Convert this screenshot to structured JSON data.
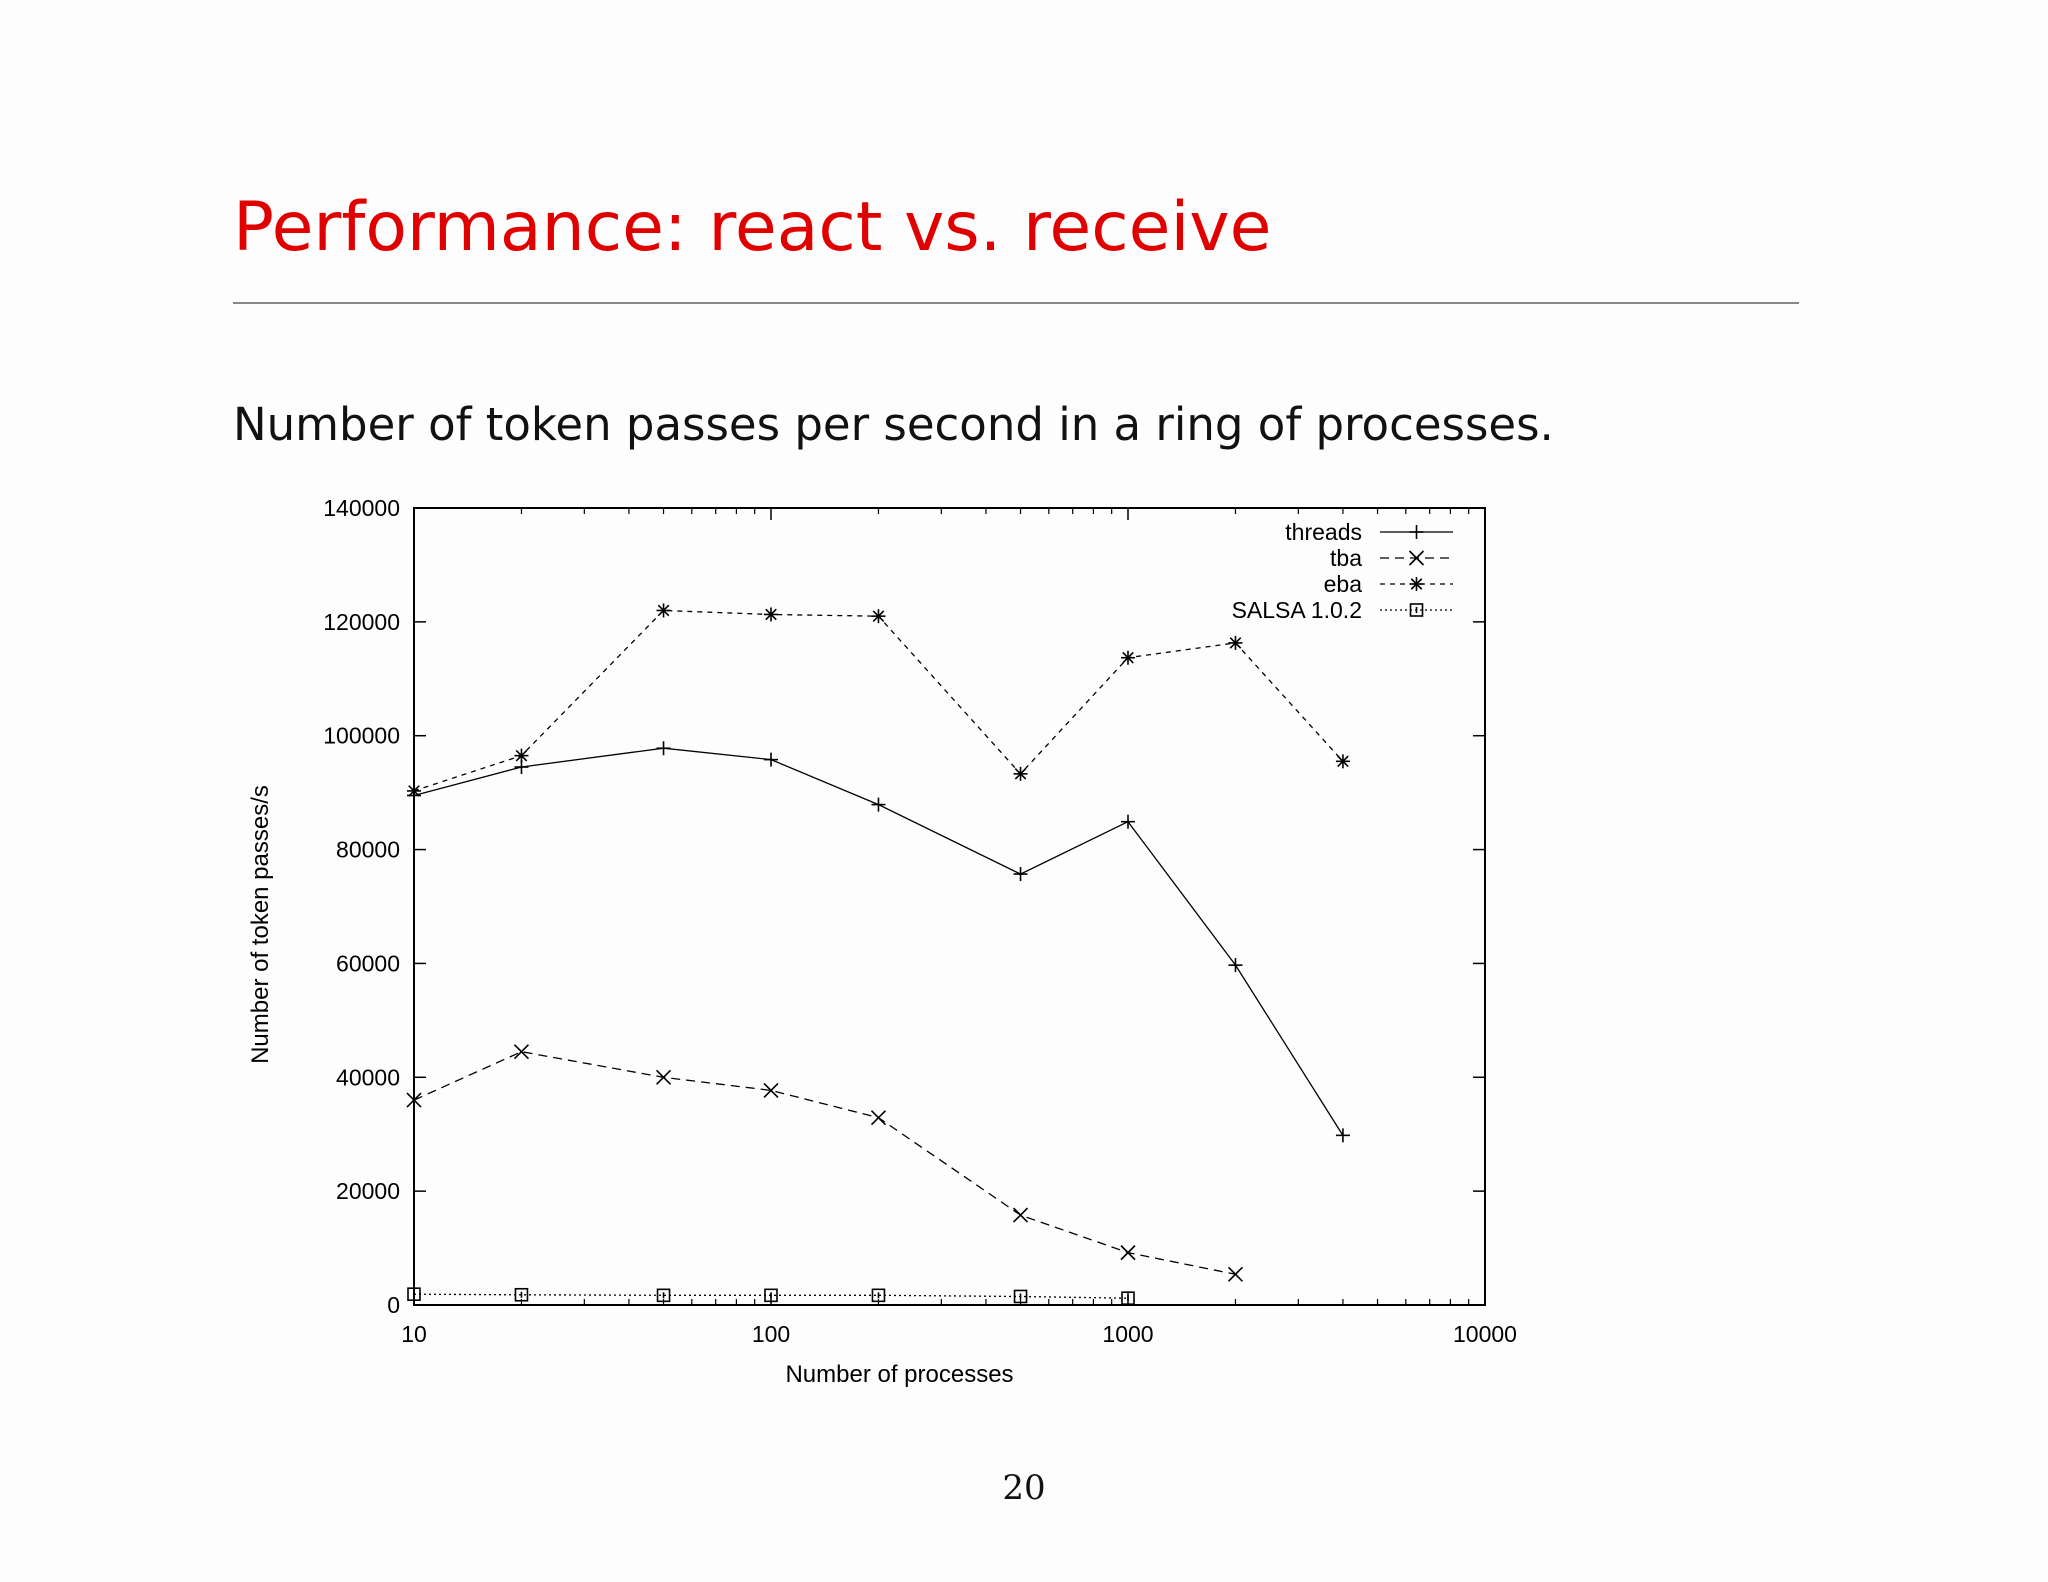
{
  "slide": {
    "title": "Performance: react vs. receive",
    "subtitle": "Number of token passes per second in a ring of processes.",
    "page_number": "20"
  },
  "colors": {
    "title": "#e00000",
    "rule": "#888888",
    "plot": "#000000"
  },
  "chart_data": {
    "type": "line",
    "xlabel": "Number of processes",
    "ylabel": "Number of token passes/s",
    "xscale": "log",
    "xlim": [
      10,
      10000
    ],
    "ylim": [
      0,
      140000
    ],
    "xticks": [
      10,
      100,
      1000,
      10000
    ],
    "xtick_labels": [
      "10",
      "100",
      "1000",
      "10000"
    ],
    "yticks": [
      0,
      20000,
      40000,
      60000,
      80000,
      100000,
      120000,
      140000
    ],
    "ytick_labels": [
      "0",
      "20000",
      "40000",
      "60000",
      "80000",
      "100000",
      "120000",
      "140000"
    ],
    "grid": false,
    "legend_position": "top-right",
    "series": [
      {
        "name": "threads",
        "marker": "plus",
        "dash": "solid",
        "x": [
          10,
          20,
          50,
          100,
          200,
          500,
          1000,
          2000,
          4000
        ],
        "y": [
          89500,
          94500,
          97800,
          95800,
          87900,
          75700,
          84900,
          59700,
          29800
        ]
      },
      {
        "name": "tba",
        "marker": "cross",
        "dash": "dashed",
        "x": [
          10,
          20,
          50,
          100,
          200,
          500,
          1000,
          2000
        ],
        "y": [
          36000,
          44500,
          40000,
          37700,
          32900,
          15800,
          9200,
          5400
        ]
      },
      {
        "name": "eba",
        "marker": "star",
        "dash": "dash-dot",
        "x": [
          10,
          20,
          50,
          100,
          200,
          500,
          1000,
          2000,
          4000
        ],
        "y": [
          90300,
          96500,
          122000,
          121300,
          121000,
          93300,
          113700,
          116300,
          95500
        ]
      },
      {
        "name": "SALSA 1.0.2",
        "marker": "square",
        "dash": "dotted",
        "x": [
          10,
          20,
          50,
          100,
          200,
          500,
          1000
        ],
        "y": [
          1900,
          1800,
          1700,
          1700,
          1700,
          1500,
          1200
        ]
      }
    ]
  }
}
